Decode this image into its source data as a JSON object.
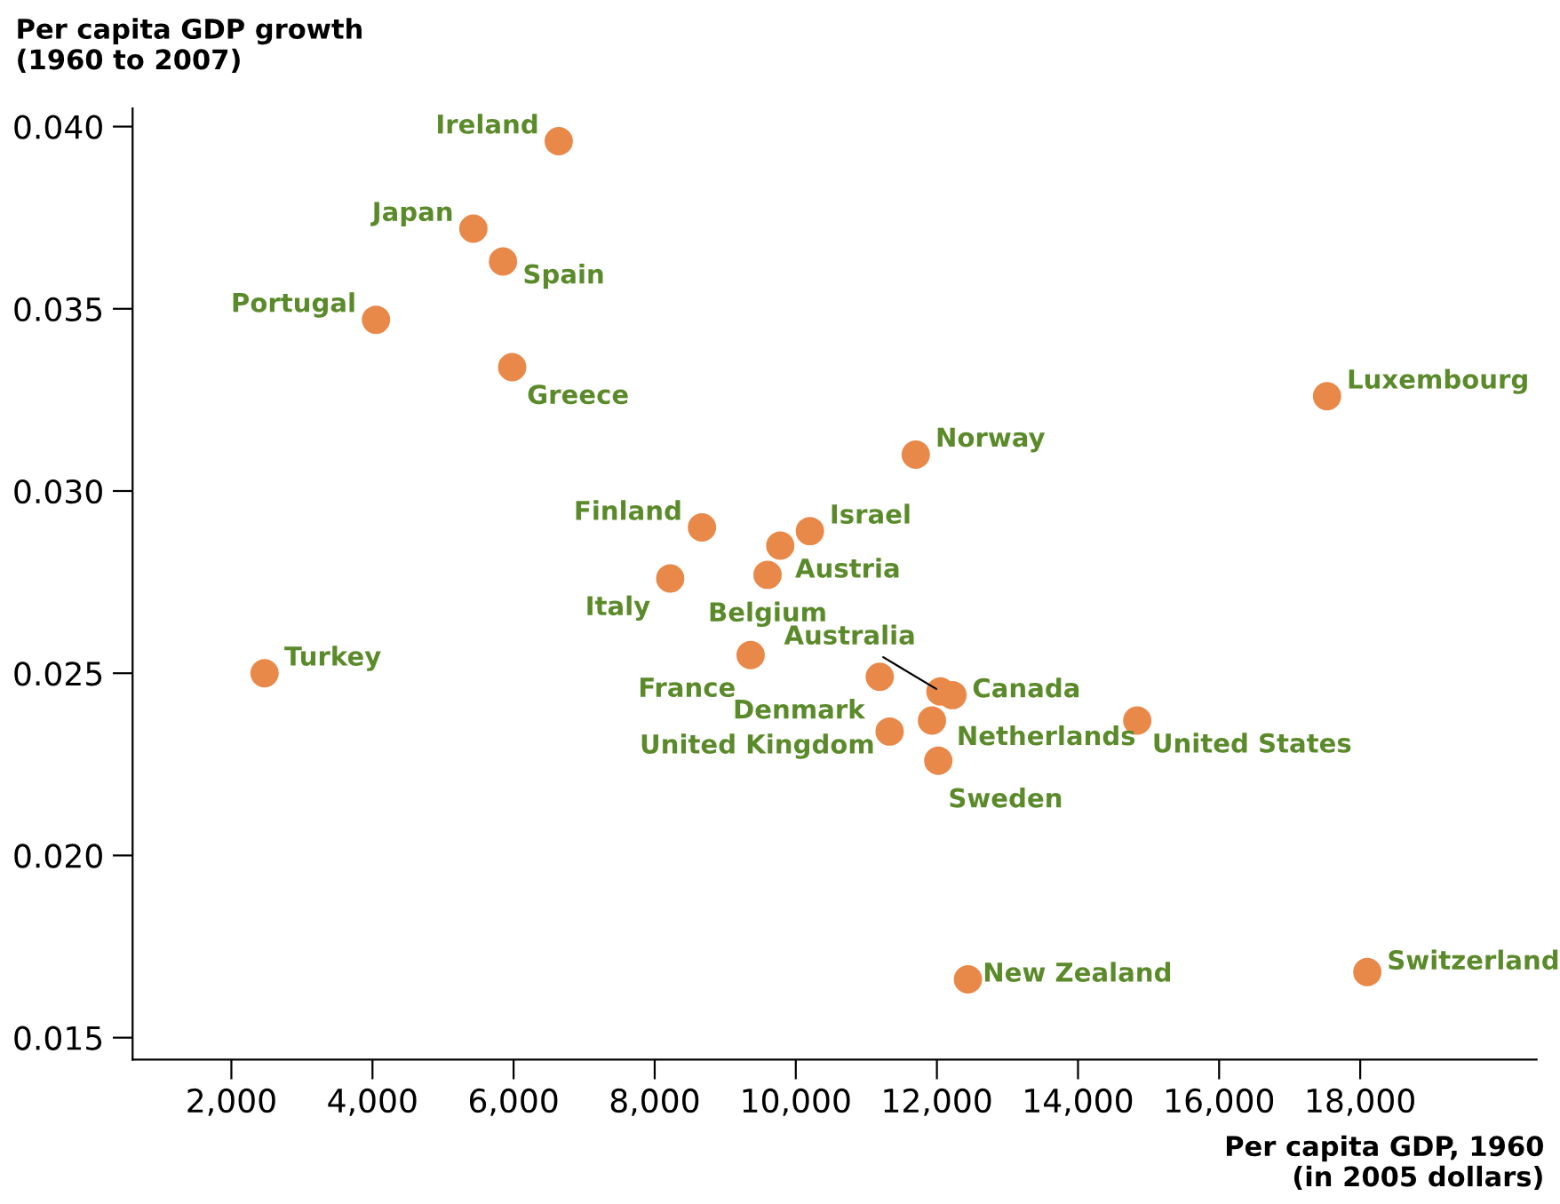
{
  "chart_data": {
    "type": "scatter",
    "ylabel": "Per capita GDP growth\n(1960 to 2007)",
    "xlabel": "Per capita GDP, 1960\n(in 2005 dollars)",
    "x": [
      6640,
      5430,
      5850,
      4050,
      5980,
      17530,
      11700,
      8670,
      10200,
      9780,
      9600,
      8220,
      2470,
      9360,
      11190,
      12050,
      12220,
      11930,
      14840,
      11330,
      12020,
      12440,
      18100
    ],
    "series": [
      {
        "color": "#e8894a",
        "values": [
          0.0396,
          0.0372,
          0.0363,
          0.0347,
          0.0334,
          0.0326,
          0.031,
          0.029,
          0.0289,
          0.0285,
          0.0277,
          0.0276,
          0.025,
          0.0255,
          0.0249,
          0.0245,
          0.0244,
          0.0237,
          0.0237,
          0.0234,
          0.0226,
          0.0166,
          0.0168
        ]
      }
    ],
    "annotations": [
      {
        "text": "Ireland",
        "x": 6640,
        "y": 0.0396
      },
      {
        "text": "Japan",
        "x": 5430,
        "y": 0.0372
      },
      {
        "text": "Spain",
        "x": 5850,
        "y": 0.0363
      },
      {
        "text": "Portugal",
        "x": 4050,
        "y": 0.0347
      },
      {
        "text": "Greece",
        "x": 5980,
        "y": 0.0334
      },
      {
        "text": "Luxembourg",
        "x": 17530,
        "y": 0.0326
      },
      {
        "text": "Norway",
        "x": 11700,
        "y": 0.031
      },
      {
        "text": "Finland",
        "x": 8670,
        "y": 0.029
      },
      {
        "text": "Israel",
        "x": 10200,
        "y": 0.0289
      },
      {
        "text": "Austria",
        "x": 9780,
        "y": 0.0285
      },
      {
        "text": "Belgium",
        "x": 9600,
        "y": 0.0277
      },
      {
        "text": "Italy",
        "x": 8220,
        "y": 0.0276
      },
      {
        "text": "Turkey",
        "x": 2470,
        "y": 0.025
      },
      {
        "text": "France",
        "x": 9360,
        "y": 0.0255
      },
      {
        "text": "Denmark",
        "x": 11190,
        "y": 0.0249
      },
      {
        "text": "Australia",
        "x": 12050,
        "y": 0.0245
      },
      {
        "text": "Canada",
        "x": 12220,
        "y": 0.0244
      },
      {
        "text": "Netherlands",
        "x": 11930,
        "y": 0.0237
      },
      {
        "text": "United States",
        "x": 14840,
        "y": 0.0237
      },
      {
        "text": "United Kingdom",
        "x": 11330,
        "y": 0.0234
      },
      {
        "text": "Sweden",
        "x": 12020,
        "y": 0.0226
      },
      {
        "text": "New Zealand",
        "x": 12440,
        "y": 0.0166
      },
      {
        "text": "Switzerland",
        "x": 18100,
        "y": 0.0168
      }
    ],
    "xlim": [
      600,
      20500
    ],
    "ylim": [
      0.0144,
      0.0405
    ],
    "xticks": [
      {
        "value": 2000,
        "label": "2,000"
      },
      {
        "value": 4000,
        "label": "4,000"
      },
      {
        "value": 6000,
        "label": "6,000"
      },
      {
        "value": 8000,
        "label": "8,000"
      },
      {
        "value": 10000,
        "label": "10,000"
      },
      {
        "value": 12000,
        "label": "12,000"
      },
      {
        "value": 14000,
        "label": "14,000"
      },
      {
        "value": 16000,
        "label": "16,000"
      },
      {
        "value": 18000,
        "label": "18,000"
      }
    ],
    "yticks": [
      {
        "value": 0.015,
        "label": "0.015"
      },
      {
        "value": 0.02,
        "label": "0.020"
      },
      {
        "value": 0.025,
        "label": "0.025"
      },
      {
        "value": 0.03,
        "label": "0.030"
      },
      {
        "value": 0.035,
        "label": "0.035"
      },
      {
        "value": 0.04,
        "label": "0.040"
      }
    ],
    "grid": false,
    "marker": "circle",
    "legend": false
  }
}
